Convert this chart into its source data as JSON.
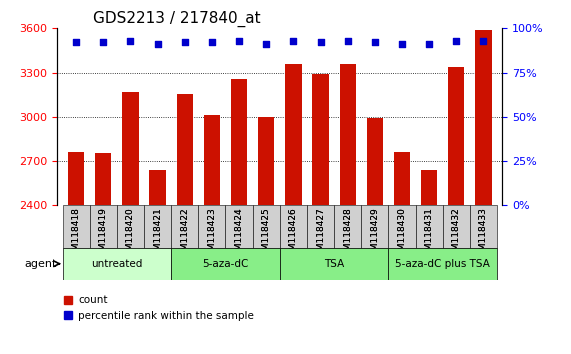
{
  "title": "GDS2213 / 217840_at",
  "categories": [
    "GSM118418",
    "GSM118419",
    "GSM118420",
    "GSM118421",
    "GSM118422",
    "GSM118423",
    "GSM118424",
    "GSM118425",
    "GSM118426",
    "GSM118427",
    "GSM118428",
    "GSM118429",
    "GSM118430",
    "GSM118431",
    "GSM118432",
    "GSM118433"
  ],
  "bar_values": [
    2760,
    2755,
    3170,
    2640,
    3155,
    3010,
    3255,
    3000,
    3360,
    3290,
    3360,
    2990,
    2760,
    2640,
    3340,
    3590
  ],
  "percentile_values": [
    92,
    92,
    93,
    91,
    92,
    92,
    93,
    91,
    93,
    92,
    93,
    92,
    91,
    91,
    93,
    93
  ],
  "bar_color": "#cc1100",
  "dot_color": "#0000cc",
  "ylim_left": [
    2400,
    3600
  ],
  "ylim_right": [
    0,
    100
  ],
  "yticks_left": [
    2400,
    2700,
    3000,
    3300,
    3600
  ],
  "yticks_right": [
    0,
    25,
    50,
    75,
    100
  ],
  "groups": [
    {
      "label": "untreated",
      "start": 0,
      "end": 4,
      "color": "#ccffcc"
    },
    {
      "label": "5-aza-dC",
      "start": 4,
      "end": 8,
      "color": "#88ee88"
    },
    {
      "label": "TSA",
      "start": 8,
      "end": 12,
      "color": "#88ee88"
    },
    {
      "label": "5-aza-dC plus TSA",
      "start": 12,
      "end": 16,
      "color": "#88ee88"
    }
  ],
  "agent_label": "agent",
  "legend_count_label": "count",
  "legend_pct_label": "percentile rank within the sample",
  "bg_color": "#ffffff",
  "plot_bg_color": "#ffffff",
  "title_fontsize": 11,
  "axis_fontsize": 9,
  "tick_fontsize": 8,
  "label_fontsize": 8
}
